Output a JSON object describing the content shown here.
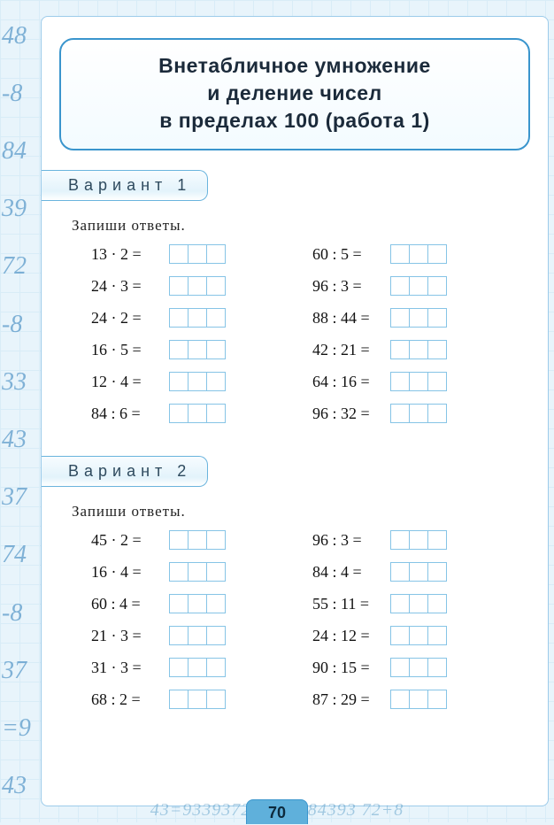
{
  "title": {
    "line1": "Внетабличное  умножение",
    "line2": "и  деление  чисел",
    "line3": "в  пределах 100  (работа  1)"
  },
  "variant1": {
    "label": "Вариант 1",
    "instruction": "Запиши  ответы.",
    "left": [
      {
        "a": "13",
        "op": "·",
        "b": "2"
      },
      {
        "a": "24",
        "op": "·",
        "b": "3"
      },
      {
        "a": "24",
        "op": "·",
        "b": "2"
      },
      {
        "a": "16",
        "op": "·",
        "b": "5"
      },
      {
        "a": "12",
        "op": "·",
        "b": "4"
      },
      {
        "a": "84",
        "op": ":",
        "b": "6"
      }
    ],
    "right": [
      {
        "a": "60",
        "op": ":",
        "b": "5"
      },
      {
        "a": "96",
        "op": ":",
        "b": "3"
      },
      {
        "a": "88",
        "op": ":",
        "b": "44"
      },
      {
        "a": "42",
        "op": ":",
        "b": "21"
      },
      {
        "a": "64",
        "op": ":",
        "b": "16"
      },
      {
        "a": "96",
        "op": ":",
        "b": "32"
      }
    ]
  },
  "variant2": {
    "label": "Вариант 2",
    "instruction": "Запиши  ответы.",
    "left": [
      {
        "a": "45",
        "op": "·",
        "b": "2"
      },
      {
        "a": "16",
        "op": "·",
        "b": "4"
      },
      {
        "a": "60",
        "op": ":",
        "b": "4"
      },
      {
        "a": "21",
        "op": "·",
        "b": "3"
      },
      {
        "a": "31",
        "op": "·",
        "b": "3"
      },
      {
        "a": "68",
        "op": ":",
        "b": "2"
      }
    ],
    "right": [
      {
        "a": "96",
        "op": ":",
        "b": "3"
      },
      {
        "a": "84",
        "op": ":",
        "b": "4"
      },
      {
        "a": "55",
        "op": ":",
        "b": "11"
      },
      {
        "a": "24",
        "op": ":",
        "b": "12"
      },
      {
        "a": "90",
        "op": ":",
        "b": "15"
      },
      {
        "a": "87",
        "op": ":",
        "b": "29"
      }
    ]
  },
  "answer_cells": 3,
  "page_number": "70",
  "spine_numbers": [
    "48",
    "-8",
    "84",
    "39",
    "72",
    "-8",
    "33",
    "43",
    "37",
    "74",
    "-8",
    "37",
    "=9",
    "43"
  ],
  "bottom_text": "43=9339372+43   7884393 72+8",
  "colors": {
    "page_bg": "#e8f4fb",
    "grid": "#c5e4f3",
    "border_blue": "#3a95cd",
    "cell_border": "#86c4e6",
    "tab_fill": "#5fb0db",
    "text": "#111111"
  }
}
